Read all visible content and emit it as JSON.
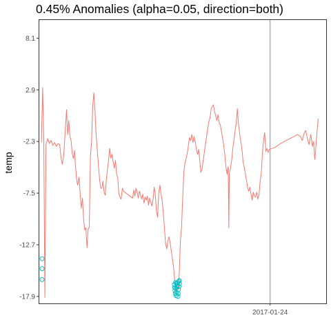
{
  "chart_data": {
    "type": "line",
    "title": "0.45% Anomalies (alpha=0.05, direction=both)",
    "xlabel": "",
    "ylabel": "temp",
    "y_ticks": [
      8.1,
      2.9,
      -2.3,
      -7.5,
      -12.7,
      -17.9
    ],
    "y_tick_labels": [
      "8.1",
      "2.9",
      "-2.3",
      "-7.5",
      "-12.7",
      "-17.9"
    ],
    "x_tick_labels": [
      "2017-01-24"
    ],
    "vline_label": "2017-01-24",
    "ylim": [
      -18.6,
      10.0
    ],
    "grid": false,
    "series": [
      {
        "color": "#f8766d",
        "values": [
          [
            0.0,
            -2.4
          ],
          [
            0.4,
            3.1
          ],
          [
            0.8,
            -1.5
          ],
          [
            1.2,
            -18.0
          ],
          [
            1.6,
            -2.6
          ],
          [
            2.2,
            -2.0
          ],
          [
            2.8,
            -2.5
          ],
          [
            3.4,
            -2.2
          ],
          [
            4.0,
            -2.7
          ],
          [
            4.6,
            -2.4
          ],
          [
            5.2,
            -2.8
          ],
          [
            5.8,
            -2.5
          ],
          [
            6.4,
            -2.6
          ],
          [
            6.9,
            -4.0
          ],
          [
            7.3,
            -4.6
          ],
          [
            7.8,
            -3.8
          ],
          [
            8.3,
            -1.5
          ],
          [
            8.8,
            0.9
          ],
          [
            9.2,
            -1.6
          ],
          [
            9.6,
            -0.2
          ],
          [
            10.0,
            -1.8
          ],
          [
            10.4,
            -2.2
          ],
          [
            10.8,
            -3.5
          ],
          [
            11.2,
            -4.0
          ],
          [
            11.6,
            -3.2
          ],
          [
            11.9,
            -4.6
          ],
          [
            12.3,
            -6.0
          ],
          [
            12.7,
            -6.7
          ],
          [
            13.2,
            -5.9
          ],
          [
            13.6,
            -7.6
          ],
          [
            14.0,
            -9.0
          ],
          [
            14.4,
            -8.0
          ],
          [
            14.8,
            -10.1
          ],
          [
            15.2,
            -11.2
          ],
          [
            15.6,
            -11.0
          ],
          [
            16.0,
            -13.0
          ],
          [
            16.4,
            -11.1
          ],
          [
            16.8,
            -10.9
          ],
          [
            17.2,
            -3.9
          ],
          [
            17.6,
            -2.3
          ],
          [
            18.0,
            1.2
          ],
          [
            18.4,
            2.6
          ],
          [
            18.8,
            0.9
          ],
          [
            19.2,
            -1.6
          ],
          [
            19.6,
            -3.2
          ],
          [
            20.0,
            -4.6
          ],
          [
            20.4,
            -6.1
          ],
          [
            20.8,
            -7.0
          ],
          [
            21.2,
            -7.0
          ],
          [
            21.6,
            -6.3
          ],
          [
            22.0,
            -7.4
          ],
          [
            22.4,
            -7.7
          ],
          [
            22.8,
            -6.1
          ],
          [
            23.2,
            -5.1
          ],
          [
            23.6,
            -4.1
          ],
          [
            24.0,
            -3.0
          ],
          [
            24.4,
            -4.0
          ],
          [
            24.8,
            -3.6
          ],
          [
            25.2,
            -4.4
          ],
          [
            25.6,
            -5.0
          ],
          [
            26.0,
            -4.2
          ],
          [
            26.4,
            -5.6
          ],
          [
            26.8,
            -6.0
          ],
          [
            27.2,
            -7.6
          ],
          [
            27.6,
            -7.9
          ],
          [
            28.0,
            -8.1
          ],
          [
            28.4,
            -7.0
          ],
          [
            28.8,
            -7.3
          ],
          [
            32.0,
            -8.0
          ],
          [
            32.4,
            -7.2
          ],
          [
            32.8,
            -7.8
          ],
          [
            33.2,
            -7.0
          ],
          [
            33.6,
            -7.4
          ],
          [
            34.0,
            -8.0
          ],
          [
            34.4,
            -7.3
          ],
          [
            34.8,
            -7.7
          ],
          [
            35.2,
            -8.1
          ],
          [
            35.6,
            -7.6
          ],
          [
            36.0,
            -8.5
          ],
          [
            36.4,
            -7.9
          ],
          [
            36.8,
            -8.2
          ],
          [
            37.2,
            -7.8
          ],
          [
            37.6,
            -8.7
          ],
          [
            38.0,
            -8.0
          ],
          [
            38.4,
            -8.4
          ],
          [
            38.8,
            -8.8
          ],
          [
            39.2,
            -8.1
          ],
          [
            39.6,
            -6.9
          ],
          [
            40.0,
            -7.7
          ],
          [
            40.4,
            -9.3
          ],
          [
            40.8,
            -9.9
          ],
          [
            41.2,
            -7.5
          ],
          [
            41.6,
            -6.7
          ],
          [
            42.0,
            -7.6
          ],
          [
            42.4,
            -8.2
          ],
          [
            42.8,
            -9.5
          ],
          [
            43.2,
            -11.0
          ],
          [
            43.6,
            -12.6
          ],
          [
            44.0,
            -13.1
          ],
          [
            44.4,
            -12.3
          ],
          [
            44.8,
            -11.9
          ],
          [
            45.2,
            -12.5
          ],
          [
            45.6,
            -13.3
          ],
          [
            46.0,
            -14.1
          ],
          [
            46.4,
            -15.0
          ],
          [
            46.8,
            -16.3
          ],
          [
            47.2,
            -17.4
          ],
          [
            47.6,
            -16.8
          ],
          [
            48.0,
            -17.2
          ],
          [
            48.4,
            -15.5
          ],
          [
            48.8,
            -12.3
          ],
          [
            49.2,
            -10.9
          ],
          [
            49.6,
            -8.0
          ],
          [
            50.0,
            -5.4
          ],
          [
            50.4,
            -4.5
          ],
          [
            50.8,
            -4.0
          ],
          [
            51.2,
            -3.5
          ],
          [
            51.6,
            -2.7
          ],
          [
            52.0,
            -1.9
          ],
          [
            52.4,
            -2.2
          ],
          [
            52.8,
            -1.6
          ],
          [
            53.2,
            -2.4
          ],
          [
            53.6,
            -1.8
          ],
          [
            54.0,
            -2.3
          ],
          [
            54.4,
            -3.0
          ],
          [
            54.8,
            -3.6
          ],
          [
            55.2,
            -3.1
          ],
          [
            55.6,
            -4.2
          ],
          [
            56.0,
            -5.4
          ],
          [
            56.4,
            -5.1
          ],
          [
            56.8,
            -4.3
          ],
          [
            57.2,
            -3.4
          ],
          [
            57.6,
            -2.6
          ],
          [
            58.0,
            -1.8
          ],
          [
            58.4,
            -1.0
          ],
          [
            58.8,
            -0.3
          ],
          [
            59.2,
            0.1
          ],
          [
            59.6,
            1.0
          ],
          [
            60.0,
            1.2
          ],
          [
            60.4,
            1.4
          ],
          [
            60.8,
            0.7
          ],
          [
            61.2,
            0.3
          ],
          [
            61.6,
            -0.2
          ],
          [
            62.0,
            0.4
          ],
          [
            62.4,
            -0.4
          ],
          [
            62.8,
            -0.6
          ],
          [
            63.2,
            -1.3
          ],
          [
            63.6,
            -1.9
          ],
          [
            64.0,
            -2.7
          ],
          [
            64.4,
            -3.6
          ],
          [
            64.8,
            -4.9
          ],
          [
            65.2,
            -5.6
          ],
          [
            65.6,
            -4.8
          ],
          [
            65.8,
            -11.0
          ],
          [
            66.0,
            -5.5
          ],
          [
            66.4,
            -5.0
          ],
          [
            66.8,
            -4.2
          ],
          [
            67.2,
            -3.0
          ],
          [
            67.6,
            -2.2
          ],
          [
            68.0,
            -1.2
          ],
          [
            68.4,
            -0.5
          ],
          [
            68.8,
            1.0
          ],
          [
            69.2,
            -0.5
          ],
          [
            69.6,
            -1.5
          ],
          [
            70.0,
            -2.3
          ],
          [
            70.4,
            -3.0
          ],
          [
            70.8,
            -4.3
          ],
          [
            71.2,
            -4.9
          ],
          [
            71.6,
            -5.5
          ],
          [
            72.0,
            -6.2
          ],
          [
            72.4,
            -6.9
          ],
          [
            72.8,
            -7.3
          ],
          [
            73.2,
            -6.9
          ],
          [
            73.6,
            -7.6
          ],
          [
            74.0,
            -8.2
          ],
          [
            74.4,
            -7.4
          ],
          [
            74.8,
            -7.8
          ],
          [
            75.2,
            -7.9
          ],
          [
            75.6,
            -7.4
          ],
          [
            76.0,
            -8.1
          ],
          [
            76.4,
            -7.7
          ],
          [
            76.8,
            -6.3
          ],
          [
            77.2,
            -5.5
          ],
          [
            77.6,
            -3.5
          ],
          [
            78.0,
            -2.2
          ],
          [
            78.4,
            -1.4
          ],
          [
            78.8,
            -3.3
          ],
          [
            79.2,
            -3.0
          ],
          [
            79.6,
            -3.4
          ],
          [
            80.0,
            -3.1
          ],
          [
            82.0,
            -2.9
          ],
          [
            84.0,
            -2.5
          ],
          [
            86.0,
            -2.2
          ],
          [
            88.0,
            -1.9
          ],
          [
            90.0,
            -1.6
          ],
          [
            91.0,
            -1.8
          ],
          [
            91.6,
            -2.2
          ],
          [
            92.2,
            -1.5
          ],
          [
            92.8,
            -1.2
          ],
          [
            93.4,
            -2.0
          ],
          [
            94.0,
            -2.6
          ],
          [
            94.6,
            -1.6
          ],
          [
            95.2,
            -2.8
          ],
          [
            95.6,
            -2.3
          ],
          [
            96.0,
            -4.1
          ],
          [
            96.4,
            -2.8
          ],
          [
            96.8,
            -1.3
          ],
          [
            97.2,
            0.0
          ]
        ]
      }
    ],
    "anomalies": {
      "color": "#00bfc4",
      "points": [
        [
          0.2,
          -14.1
        ],
        [
          0.2,
          -15.1
        ],
        [
          0.2,
          -16.2
        ],
        [
          46.7,
          -16.7
        ],
        [
          46.8,
          -17.0
        ],
        [
          46.9,
          -17.3
        ],
        [
          47.0,
          -17.6
        ],
        [
          47.1,
          -16.5
        ],
        [
          47.2,
          -17.1
        ],
        [
          47.3,
          -17.8
        ],
        [
          47.4,
          -17.5
        ],
        [
          47.5,
          -16.6
        ],
        [
          47.6,
          -16.9
        ],
        [
          47.7,
          -16.8
        ],
        [
          47.8,
          -16.5
        ],
        [
          47.9,
          -17.9
        ],
        [
          48.0,
          -17.6
        ],
        [
          48.1,
          -17.2
        ],
        [
          48.2,
          -16.4
        ],
        [
          48.3,
          -16.9
        ],
        [
          48.4,
          -16.3
        ],
        [
          48.5,
          -16.6
        ]
      ]
    },
    "vline_x": 80.3,
    "xlim": [
      -1.0,
      100.0
    ]
  }
}
